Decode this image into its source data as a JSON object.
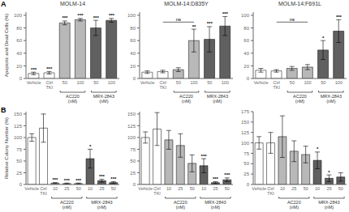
{
  "chart_data": [
    {
      "type": "bar",
      "title": "MOLM-14",
      "y_label": "Apoptotic and Dead Cells (%)",
      "panel_label": "A",
      "categories": [
        "Vehicle",
        "Ctrl\nTKI",
        "50",
        "100",
        "50",
        "100"
      ],
      "values": [
        8,
        9,
        88,
        93,
        80,
        92
      ],
      "errors": [
        2,
        2,
        3,
        2,
        12,
        3
      ],
      "colors": [
        "white",
        "white",
        "#b8b8b8",
        "#b8b8b8",
        "#606060",
        "#606060"
      ],
      "stars": [
        "***",
        "***",
        "***",
        "***",
        "***",
        "***"
      ],
      "groups": [
        {
          "label": "AC220\n(nM)",
          "from": 2,
          "to": 3
        },
        {
          "label": "MRX-2843\n(nM)",
          "from": 4,
          "to": 5
        }
      ],
      "ylim": [
        0,
        105
      ],
      "yticks": [
        0,
        20,
        40,
        60,
        80,
        100
      ],
      "grid": false
    },
    {
      "type": "bar",
      "title": "MOLM-14:D835Y",
      "categories": [
        "Vehicle",
        "Ctrl\nTKI",
        "50",
        "100",
        "50",
        "100"
      ],
      "values": [
        10,
        11,
        14,
        60,
        62,
        83
      ],
      "errors": [
        2,
        2,
        3,
        18,
        20,
        15
      ],
      "colors": [
        "white",
        "white",
        "#b8b8b8",
        "#b8b8b8",
        "#606060",
        "#606060"
      ],
      "stars": [
        null,
        null,
        null,
        "**",
        "***",
        "***"
      ],
      "brackets": [
        {
          "label": "ns",
          "from": 1,
          "to": 3
        }
      ],
      "groups": [
        {
          "label": "AC220\n(nM)",
          "from": 2,
          "to": 3
        },
        {
          "label": "MRX-2843\n(nM)",
          "from": 4,
          "to": 5
        }
      ],
      "ylim": [
        0,
        105
      ],
      "yticks": [
        0,
        20,
        40,
        60,
        80,
        100
      ],
      "grid": false
    },
    {
      "type": "bar",
      "title": "MOLM-14:F691L",
      "categories": [
        "Vehicle",
        "Ctrl\nTKI",
        "50",
        "100",
        "50",
        "100"
      ],
      "values": [
        13,
        12,
        16,
        18,
        45,
        75
      ],
      "errors": [
        3,
        2,
        3,
        4,
        15,
        18
      ],
      "colors": [
        "white",
        "white",
        "#b8b8b8",
        "#b8b8b8",
        "#606060",
        "#606060"
      ],
      "stars": [
        null,
        null,
        null,
        null,
        "*",
        "***"
      ],
      "brackets": [
        {
          "label": "ns",
          "from": 1,
          "to": 3
        }
      ],
      "groups": [
        {
          "label": "AC220\n(nM)",
          "from": 2,
          "to": 3
        },
        {
          "label": "MRX-2843\n(nM)",
          "from": 4,
          "to": 5
        }
      ],
      "ylim": [
        0,
        105
      ],
      "yticks": [
        0,
        20,
        40,
        60,
        80,
        100
      ],
      "grid": false
    },
    {
      "type": "bar",
      "y_label": "Relative Colony Number (%)",
      "panel_label": "B",
      "categories": [
        "Vehicle",
        "Ctrl\nTKI",
        "10",
        "25",
        "50",
        "10",
        "25",
        "50"
      ],
      "values": [
        100,
        120,
        3,
        2,
        2,
        55,
        8,
        4
      ],
      "errors": [
        8,
        30,
        1,
        1,
        1,
        20,
        3,
        2
      ],
      "colors": [
        "white",
        "white",
        "#b8b8b8",
        "#b8b8b8",
        "#b8b8b8",
        "#606060",
        "#606060",
        "#606060"
      ],
      "stars": [
        null,
        null,
        "***",
        "***",
        "***",
        "*",
        "***",
        "***"
      ],
      "groups": [
        {
          "label": "AC220\n(nM)",
          "from": 2,
          "to": 4
        },
        {
          "label": "MRX-2843\n(nM)",
          "from": 5,
          "to": 7
        }
      ],
      "ylim": [
        0,
        155
      ],
      "yticks": [
        0,
        25,
        50,
        75,
        100,
        125,
        150
      ],
      "grid": false
    },
    {
      "type": "bar",
      "categories": [
        "Vehicle",
        "Ctrl\nTKI",
        "10",
        "25",
        "50",
        "10",
        "25",
        "50"
      ],
      "values": [
        100,
        118,
        95,
        83,
        45,
        40,
        4,
        10
      ],
      "errors": [
        12,
        35,
        20,
        25,
        18,
        15,
        2,
        4
      ],
      "colors": [
        "white",
        "white",
        "#b8b8b8",
        "#b8b8b8",
        "#b8b8b8",
        "#606060",
        "#606060",
        "#606060"
      ],
      "stars": [
        null,
        null,
        null,
        null,
        null,
        "***",
        "***",
        "***"
      ],
      "groups": [
        {
          "label": "AC220\n(nM)",
          "from": 2,
          "to": 4
        },
        {
          "label": "MRX-2843\n(nM)",
          "from": 5,
          "to": 7
        }
      ],
      "ylim": [
        0,
        155
      ],
      "yticks": [
        0,
        25,
        50,
        75,
        100,
        125,
        150
      ],
      "grid": false
    },
    {
      "type": "bar",
      "categories": [
        "Vehicle",
        "Ctrl\nTKI",
        "10",
        "25",
        "50",
        "10",
        "25",
        "50"
      ],
      "values": [
        100,
        100,
        115,
        80,
        72,
        58,
        15,
        18
      ],
      "errors": [
        15,
        25,
        50,
        25,
        20,
        20,
        8,
        10
      ],
      "colors": [
        "white",
        "white",
        "#b8b8b8",
        "#b8b8b8",
        "#b8b8b8",
        "#606060",
        "#606060",
        "#606060"
      ],
      "stars": [
        null,
        null,
        null,
        null,
        null,
        "*",
        "*",
        null
      ],
      "groups": [
        {
          "label": "AC220\n(nM)",
          "from": 2,
          "to": 4
        },
        {
          "label": "MRX-2843\n(nM)",
          "from": 5,
          "to": 7
        }
      ],
      "ylim": [
        0,
        175
      ],
      "yticks": [
        0,
        25,
        50,
        75,
        100,
        125,
        150,
        175
      ],
      "grid": false
    }
  ]
}
